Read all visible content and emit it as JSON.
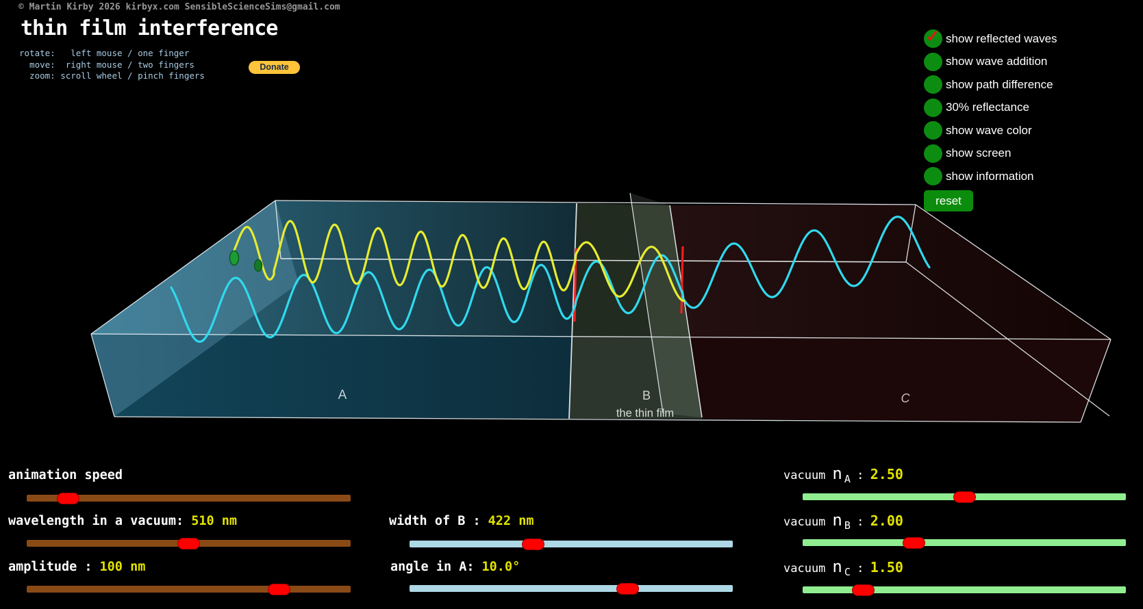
{
  "header": {
    "copyright": "© Martin Kirby 2026 kirbyx.com SensibleScienceSims@gmail.com",
    "title": "thin film interference",
    "instructions": [
      "rotate:   left mouse / one finger",
      "  move:  right mouse / two fingers",
      "  zoom: scroll wheel / pinch fingers"
    ],
    "donate_label": "Donate"
  },
  "view_options": {
    "items": [
      {
        "label": "show reflected waves",
        "checked": true
      },
      {
        "label": "show wave addition",
        "checked": false
      },
      {
        "label": "show path difference",
        "checked": false
      },
      {
        "label": "30% reflectance",
        "checked": false
      },
      {
        "label": "show wave color",
        "checked": false
      },
      {
        "label": "show screen",
        "checked": false
      },
      {
        "label": "show information",
        "checked": false
      }
    ],
    "radio_color": "#0d8c12",
    "check_glyph": "✓",
    "check_color": "#ee1111",
    "reset_label": "reset"
  },
  "scene": {
    "region_a_label": "A",
    "region_b_label": "B",
    "region_b_sublabel": "the thin film",
    "region_c_label": "C",
    "incident_wave_color": "#30d9ee",
    "reflected_wave_color": "#e6ec30",
    "source_marker_color": "#1c9c36",
    "boundary_marker_color": "#ff1f1f"
  },
  "sliders": {
    "thumb_color": "#ff0000",
    "animation_speed": {
      "label": "animation speed",
      "value": "",
      "track_color": "#8a4a16"
    },
    "wavelength": {
      "label": "wavelength in a vacuum:",
      "value": "510 nm",
      "track_color": "#8a4a16"
    },
    "amplitude": {
      "label": "amplitude :",
      "value": "100 nm",
      "track_color": "#8a4a16"
    },
    "width_b": {
      "label": "width of B :",
      "value": "422 nm",
      "track_color": "#add8e6"
    },
    "angle_a": {
      "label": "angle in A:",
      "value": "10.0°",
      "track_color": "#add8e6"
    },
    "n_a": {
      "prefix": "vacuum",
      "symbol": "n",
      "sub": "A",
      "separator": ":",
      "value": "2.50",
      "track_color": "#90ee90"
    },
    "n_b": {
      "prefix": "vacuum",
      "symbol": "n",
      "sub": "B",
      "separator": ":",
      "value": "2.00",
      "track_color": "#90ee90"
    },
    "n_c": {
      "prefix": "vacuum",
      "symbol": "n",
      "sub": "C",
      "separator": ":",
      "value": "1.50",
      "track_color": "#90ee90"
    }
  }
}
